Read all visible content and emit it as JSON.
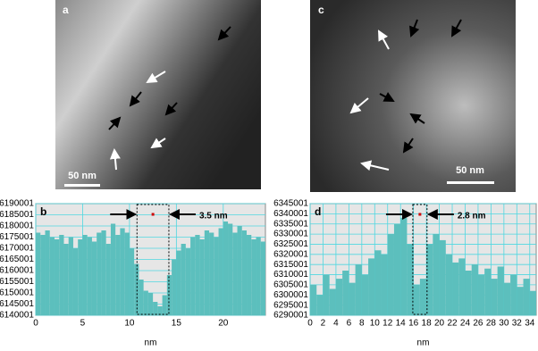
{
  "panels": [
    {
      "label": "a",
      "scale_bar": "50 nm"
    },
    {
      "label": "c",
      "scale_bar": "50 nm"
    }
  ],
  "chart_data": [
    {
      "type": "histogram",
      "title": "b",
      "annotation": "3.5 nm",
      "xlabel": "nm",
      "color": "#5cbfbd",
      "grid": true,
      "bins": [
        0,
        0.5,
        1,
        1.5,
        2,
        2.5,
        3,
        3.5,
        4,
        4.5,
        5,
        5.5,
        6,
        6.5,
        7,
        7.5,
        8,
        8.5,
        9,
        9.5,
        10,
        10.5,
        11,
        11.5,
        12,
        12.5,
        13,
        13.5,
        14,
        14.5,
        15,
        15.5,
        16,
        16.5,
        17,
        17.5,
        18,
        18.5,
        19,
        19.5,
        20,
        20.5,
        21,
        21.5,
        22,
        22.5,
        23,
        23.5,
        24,
        24.5
      ],
      "values": [
        6177000,
        6176000,
        6178000,
        6175000,
        6174000,
        6176000,
        6172000,
        6175000,
        6170000,
        6174000,
        6176000,
        6175000,
        6173000,
        6177000,
        6178000,
        6172000,
        6181000,
        6176000,
        6179000,
        6177000,
        6170000,
        6163000,
        6156000,
        6151000,
        6150000,
        6146000,
        6144000,
        6149000,
        6158000,
        6165000,
        6169000,
        6172000,
        6170000,
        6175000,
        6176000,
        6174000,
        6178000,
        6177000,
        6175000,
        6179000,
        6182000,
        6181000,
        6177000,
        6180000,
        6178000,
        6176000,
        6174000,
        6175000,
        6173000
      ],
      "highlight_x": [
        10.8,
        14.2
      ],
      "xlim": [
        0,
        24.5
      ],
      "xticks": [
        0,
        5,
        10,
        15,
        20
      ],
      "ylim": [
        6140001,
        6190001
      ],
      "yticks": [
        6140001,
        6145001,
        6150001,
        6155001,
        6160001,
        6165001,
        6170001,
        6175001,
        6180001,
        6185001,
        6190001
      ]
    },
    {
      "type": "histogram",
      "title": "d",
      "annotation": "2.8 nm",
      "xlabel": "nm",
      "color": "#5cbfbd",
      "grid": true,
      "bins": [
        0,
        1,
        2,
        3,
        4,
        5,
        6,
        7,
        8,
        9,
        10,
        11,
        12,
        13,
        14,
        15,
        16,
        17,
        18,
        19,
        20,
        21,
        22,
        23,
        24,
        25,
        26,
        27,
        28,
        29,
        30,
        31,
        32,
        33,
        34,
        35
      ],
      "values": [
        6305000,
        6300000,
        6310000,
        6303000,
        6308000,
        6312000,
        6306000,
        6315000,
        6310000,
        6318000,
        6322000,
        6320000,
        6330000,
        6335000,
        6338000,
        6325000,
        6305000,
        6308000,
        6325000,
        6330000,
        6327000,
        6320000,
        6316000,
        6318000,
        6312000,
        6315000,
        6310000,
        6313000,
        6308000,
        6314000,
        6306000,
        6310000,
        6304000,
        6308000,
        6302000
      ],
      "highlight_x": [
        15.9,
        18.1
      ],
      "xlim": [
        0,
        35
      ],
      "xticks": [
        0,
        2,
        4,
        6,
        8,
        10,
        12,
        14,
        16,
        18,
        20,
        22,
        24,
        26,
        28,
        30,
        32,
        34
      ],
      "ylim": [
        6290001,
        6345001
      ],
      "yticks": [
        6290001,
        6295001,
        6300001,
        6305001,
        6310001,
        6315001,
        6320001,
        6325001,
        6330001,
        6335001,
        6340001,
        6345001
      ]
    }
  ]
}
